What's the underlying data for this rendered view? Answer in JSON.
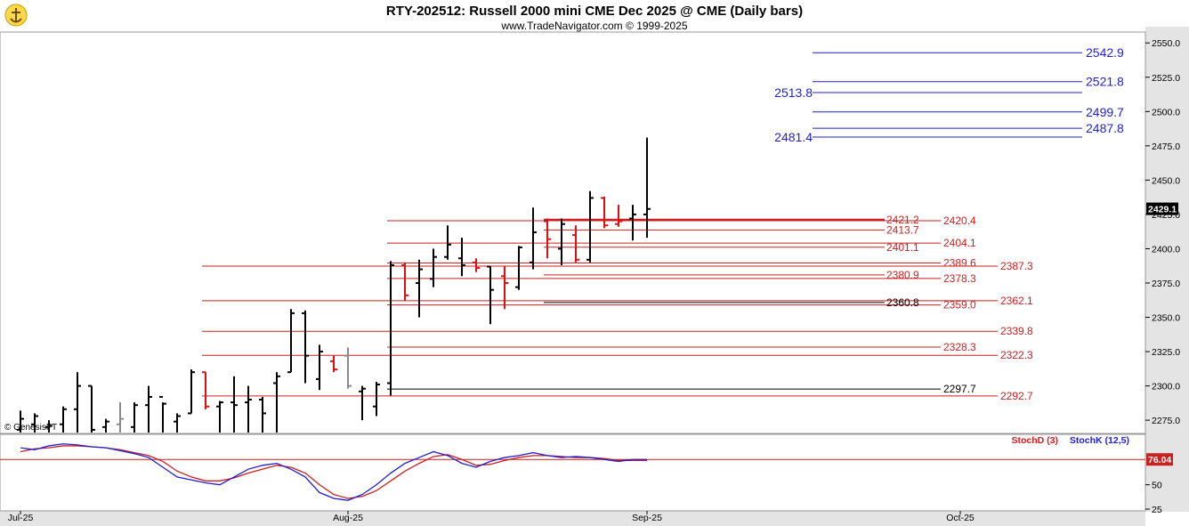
{
  "header": {
    "title": "RTY-202512:  Russell 2000 mini CME Dec 2025 @ CME  (Daily bars)",
    "subtitle": "www.TradeNavigator.com © 1999-2025",
    "watermark": "© GenesisFT",
    "logo_icon": "anchor-logo-icon"
  },
  "colors": {
    "bar_up": "#000000",
    "bar_down": "#e01010",
    "bar_neutral": "#8a8a8a",
    "blue_lines": "#1f1fd0",
    "red_lines": "#cc1f1f",
    "stoch_k": "#1f1fd0",
    "stoch_d": "#cc1f1f",
    "panel_bg": "#ffffff",
    "axis_bg": "#d8d8d8"
  },
  "chart_data": {
    "type": "ohlc",
    "title": "RTY-202512:  Russell 2000 mini CME Dec 2025 @ CME  (Daily bars)",
    "price_axis": {
      "ylim": [
        2266,
        2556
      ],
      "ticks": [
        2275.0,
        2300.0,
        2325.0,
        2350.0,
        2375.0,
        2400.0,
        2425.0,
        2450.0,
        2475.0,
        2500.0,
        2525.0,
        2550.0
      ],
      "tick_labels": [
        "2275.0",
        "2300.0",
        "2325.0",
        "2350.0",
        "2375.0",
        "2400.0",
        "2425.0",
        "2450.0",
        "2475.0",
        "2500.0",
        "2525.0",
        "2550.0"
      ],
      "last_price": "2429.1"
    },
    "date_axis": {
      "labels": [
        {
          "label": "Jul-25",
          "bar": 0
        },
        {
          "label": "Aug-25",
          "bar": 23
        },
        {
          "label": "Sep-25",
          "bar": 44
        },
        {
          "label": "Oct-25",
          "bar": 66
        }
      ]
    },
    "bars": [
      {
        "o": 2268,
        "h": 2282,
        "l": 2266,
        "c": 2276,
        "k": "up"
      },
      {
        "o": 2272,
        "h": 2280,
        "l": 2266,
        "c": 2278,
        "k": "up"
      },
      {
        "o": 2270,
        "h": 2275,
        "l": 2266,
        "c": 2271,
        "k": "up"
      },
      {
        "o": 2272,
        "h": 2285,
        "l": 2266,
        "c": 2283,
        "k": "up"
      },
      {
        "o": 2283,
        "h": 2310,
        "l": 2266,
        "c": 2300,
        "k": "up"
      },
      {
        "o": 2300,
        "h": 2300,
        "l": 2266,
        "c": 2268,
        "k": "up"
      },
      {
        "o": 2270,
        "h": 2276,
        "l": 2266,
        "c": 2274,
        "k": "up"
      },
      {
        "o": 2272,
        "h": 2288,
        "l": 2266,
        "c": 2276,
        "k": "neutral"
      },
      {
        "o": 2270,
        "h": 2288,
        "l": 2266,
        "c": 2286,
        "k": "up"
      },
      {
        "o": 2286,
        "h": 2300,
        "l": 2266,
        "c": 2292,
        "k": "up"
      },
      {
        "o": 2292,
        "h": 2288,
        "l": 2266,
        "c": 2287,
        "k": "up"
      },
      {
        "o": 2274,
        "h": 2280,
        "l": 2266,
        "c": 2278,
        "k": "up"
      },
      {
        "o": 2280,
        "h": 2312,
        "l": 2280,
        "c": 2310,
        "k": "up"
      },
      {
        "o": 2310,
        "h": 2310,
        "l": 2283,
        "c": 2285,
        "k": "down"
      },
      {
        "o": 2285,
        "h": 2289,
        "l": 2266,
        "c": 2288,
        "k": "up"
      },
      {
        "o": 2288,
        "h": 2307,
        "l": 2266,
        "c": 2286,
        "k": "up"
      },
      {
        "o": 2288,
        "h": 2300,
        "l": 2266,
        "c": 2290,
        "k": "up"
      },
      {
        "o": 2290,
        "h": 2292,
        "l": 2266,
        "c": 2280,
        "k": "up"
      },
      {
        "o": 2302,
        "h": 2310,
        "l": 2266,
        "c": 2307,
        "k": "up"
      },
      {
        "o": 2310,
        "h": 2356,
        "l": 2310,
        "c": 2353,
        "k": "up"
      },
      {
        "o": 2353,
        "h": 2355,
        "l": 2302,
        "c": 2322,
        "k": "up"
      },
      {
        "o": 2305,
        "h": 2330,
        "l": 2297,
        "c": 2325,
        "k": "up"
      },
      {
        "o": 2318,
        "h": 2322,
        "l": 2310,
        "c": 2312,
        "k": "down"
      },
      {
        "o": 2322,
        "h": 2328,
        "l": 2298,
        "c": 2300,
        "k": "neutral"
      },
      {
        "o": 2296,
        "h": 2300,
        "l": 2275,
        "c": 2298,
        "k": "up"
      },
      {
        "o": 2285,
        "h": 2303,
        "l": 2278,
        "c": 2301,
        "k": "up"
      },
      {
        "o": 2302,
        "h": 2391,
        "l": 2293,
        "c": 2388,
        "k": "up"
      },
      {
        "o": 2388,
        "h": 2390,
        "l": 2362,
        "c": 2366,
        "k": "down"
      },
      {
        "o": 2375,
        "h": 2392,
        "l": 2350,
        "c": 2385,
        "k": "up"
      },
      {
        "o": 2378,
        "h": 2400,
        "l": 2372,
        "c": 2394,
        "k": "up"
      },
      {
        "o": 2394,
        "h": 2417,
        "l": 2392,
        "c": 2403,
        "k": "up"
      },
      {
        "o": 2393,
        "h": 2408,
        "l": 2380,
        "c": 2388,
        "k": "up"
      },
      {
        "o": 2390,
        "h": 2393,
        "l": 2383,
        "c": 2386,
        "k": "down"
      },
      {
        "o": 2387,
        "h": 2387,
        "l": 2345,
        "c": 2370,
        "k": "up"
      },
      {
        "o": 2380,
        "h": 2387,
        "l": 2356,
        "c": 2375,
        "k": "down"
      },
      {
        "o": 2372,
        "h": 2402,
        "l": 2370,
        "c": 2401,
        "k": "up"
      },
      {
        "o": 2390,
        "h": 2430,
        "l": 2385,
        "c": 2412,
        "k": "up"
      },
      {
        "o": 2420,
        "h": 2422,
        "l": 2393,
        "c": 2407,
        "k": "down"
      },
      {
        "o": 2400,
        "h": 2422,
        "l": 2388,
        "c": 2418,
        "k": "up"
      },
      {
        "o": 2410,
        "h": 2417,
        "l": 2390,
        "c": 2392,
        "k": "down"
      },
      {
        "o": 2392,
        "h": 2442,
        "l": 2390,
        "c": 2437,
        "k": "up"
      },
      {
        "o": 2437,
        "h": 2438,
        "l": 2415,
        "c": 2417,
        "k": "down"
      },
      {
        "o": 2418,
        "h": 2432,
        "l": 2416,
        "c": 2420,
        "k": "down"
      },
      {
        "o": 2422,
        "h": 2432,
        "l": 2406,
        "c": 2425,
        "k": "up"
      },
      {
        "o": 2425,
        "h": 2481,
        "l": 2408,
        "c": 2429,
        "k": "up"
      }
    ],
    "blue_levels": [
      {
        "value": 2542.9,
        "label": "2542.9",
        "side": "right"
      },
      {
        "value": 2521.8,
        "label": "2521.8",
        "side": "right"
      },
      {
        "value": 2513.8,
        "label": "2513.8",
        "side": "left"
      },
      {
        "value": 2499.7,
        "label": "2499.7",
        "side": "right"
      },
      {
        "value": 2487.8,
        "label": "2487.8",
        "side": "right"
      },
      {
        "value": 2481.4,
        "label": "2481.4",
        "side": "left"
      }
    ],
    "red_levels": [
      {
        "value": 2421.2,
        "label": "2421.2",
        "col": "a",
        "start": 37
      },
      {
        "value": 2420.4,
        "label": "2420.4",
        "col": "b",
        "start": 26
      },
      {
        "value": 2413.7,
        "label": "2413.7",
        "col": "a",
        "start": 37
      },
      {
        "value": 2404.1,
        "label": "2404.1",
        "col": "b",
        "start": 26
      },
      {
        "value": 2401.1,
        "label": "2401.1",
        "col": "a",
        "start": 37
      },
      {
        "value": 2389.6,
        "label": "2389.6",
        "col": "b",
        "start": 26
      },
      {
        "value": 2387.3,
        "label": "2387.3",
        "col": "c",
        "start": 13
      },
      {
        "value": 2380.9,
        "label": "2380.9",
        "col": "a",
        "start": 37
      },
      {
        "value": 2378.3,
        "label": "2378.3",
        "col": "b",
        "start": 26
      },
      {
        "value": 2362.1,
        "label": "2362.1",
        "col": "c",
        "start": 13
      },
      {
        "value": 2359.0,
        "label": "2359.0",
        "col": "b",
        "start": 26
      },
      {
        "value": 2339.8,
        "label": "2339.8",
        "col": "c",
        "start": 13
      },
      {
        "value": 2328.3,
        "label": "2328.3",
        "col": "b",
        "start": 26
      },
      {
        "value": 2322.3,
        "label": "2322.3",
        "col": "c",
        "start": 13
      },
      {
        "value": 2292.7,
        "label": "2292.7",
        "col": "c",
        "start": 13
      }
    ],
    "black_levels": [
      {
        "value": 2360.8,
        "label": "2360.8",
        "col": "a",
        "start": 37
      },
      {
        "value": 2297.7,
        "label": "2297.7",
        "col": "b",
        "start": 26
      }
    ],
    "stochastic": {
      "ylim": [
        25,
        100
      ],
      "ticks": [
        25,
        50
      ],
      "tick_labels": [
        "25",
        "50"
      ],
      "reference_line": 76.04,
      "last_label": "76.04",
      "k_name": "StochK (12,5)",
      "d_name": "StochD (3)",
      "k": [
        88,
        86,
        90,
        92,
        91,
        89,
        88,
        85,
        82,
        78,
        68,
        58,
        55,
        52,
        50,
        58,
        66,
        70,
        72,
        66,
        58,
        42,
        36,
        34,
        40,
        50,
        62,
        72,
        78,
        84,
        80,
        72,
        68,
        74,
        78,
        80,
        83,
        80,
        78,
        79,
        78,
        76,
        74,
        76,
        76
      ],
      "d": [
        84,
        87,
        88,
        90,
        90,
        89,
        88,
        86,
        83,
        80,
        74,
        64,
        58,
        54,
        54,
        57,
        62,
        66,
        70,
        68,
        62,
        50,
        40,
        36,
        38,
        44,
        54,
        64,
        72,
        79,
        81,
        76,
        70,
        71,
        75,
        78,
        80,
        80,
        79,
        78,
        78,
        77,
        75,
        75,
        75
      ]
    }
  }
}
